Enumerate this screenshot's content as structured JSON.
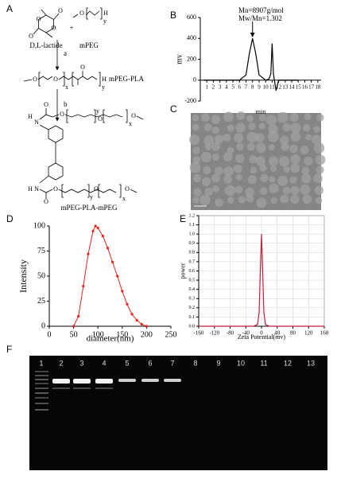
{
  "panel_labels": [
    "A",
    "B",
    "C",
    "D",
    "E",
    "F"
  ],
  "scheme": {
    "reactant1": "D,L-lactide",
    "plus": "+",
    "reactant2": "mPEG",
    "step_a": "a",
    "intermediate": "mPEG-PLA",
    "step_b": "b",
    "product": "mPEG-PLA-mPEG",
    "atoms": [
      "O",
      "O",
      "O",
      "O",
      "O",
      "y",
      "H",
      "O",
      "O",
      "x",
      "O",
      "y",
      "H",
      "H",
      "N",
      "O",
      "O",
      "y",
      "O",
      "x",
      "O",
      "H",
      "N",
      "O",
      "O",
      "y",
      "O",
      "x",
      "O"
    ]
  },
  "chart_data": [
    {
      "type": "line",
      "x_label": "min",
      "y_label": "mv",
      "annotations": [
        "Mn=8907g/mol",
        "Mw/Mn=1.302"
      ],
      "x": [
        0.5,
        2,
        4,
        6,
        7,
        7.5,
        8,
        8.5,
        9,
        10,
        10.5,
        10.8,
        11,
        11.2,
        11.4,
        11.6,
        12,
        13,
        14,
        15
      ],
      "values": [
        0,
        0,
        0,
        0,
        50,
        250,
        400,
        250,
        50,
        0,
        10,
        60,
        350,
        60,
        -20,
        -100,
        0,
        0,
        0,
        0
      ],
      "color": "#000000",
      "xlim": [
        0,
        18.5
      ],
      "xticks": [
        1,
        2,
        3,
        4,
        5,
        6,
        7,
        8,
        9,
        10,
        11,
        12,
        13,
        14,
        15,
        16,
        17,
        18
      ],
      "ylim": [
        -200,
        600
      ],
      "yticks": [
        -200,
        0,
        200,
        400,
        600
      ],
      "grid": false,
      "markers": false
    },
    {
      "type": "line",
      "x_label": "diameter(nm)",
      "y_label": "Intensity",
      "x": [
        50,
        60,
        70,
        80,
        90,
        95,
        100,
        110,
        120,
        130,
        140,
        150,
        160,
        170,
        180,
        190,
        200
      ],
      "values": [
        0,
        10,
        40,
        72,
        95,
        100,
        98,
        90,
        78,
        64,
        50,
        35,
        22,
        12,
        6,
        2,
        0
      ],
      "color": "#e8241c",
      "xlim": [
        0,
        250
      ],
      "xticks": [
        0,
        50,
        100,
        150,
        200,
        250
      ],
      "ylim": [
        0,
        100
      ],
      "yticks": [
        0,
        25,
        50,
        75,
        100
      ],
      "grid": false,
      "markers": true
    },
    {
      "type": "line",
      "x_label": "Zeta Potential(mv)",
      "y_label": "power",
      "x": [
        -160,
        -20,
        -10,
        -6,
        -3,
        0,
        3,
        6,
        10,
        20,
        160
      ],
      "values": [
        0,
        0,
        0.02,
        0.15,
        0.6,
        1.0,
        0.6,
        0.15,
        0.02,
        0,
        0
      ],
      "color": "#c0203a",
      "xlim": [
        -160,
        160
      ],
      "xticks": [
        -160,
        -120,
        -80,
        -40,
        0,
        40,
        80,
        120,
        160
      ],
      "ylim": [
        0,
        1.2
      ],
      "yticks": [
        {
          "value": 0,
          "label": "0.0"
        },
        0.1,
        0.2,
        0.3,
        0.4,
        0.5,
        0.6,
        0.7,
        0.8,
        0.9,
        {
          "value": 1,
          "label": "1.0"
        },
        1.1,
        1.2
      ],
      "grid": true,
      "markers": false
    }
  ],
  "gel": {
    "lanes": [
      "1",
      "2",
      "3",
      "4",
      "5",
      "6",
      "7",
      "8",
      "9",
      "10",
      "11",
      "12",
      "13"
    ]
  }
}
